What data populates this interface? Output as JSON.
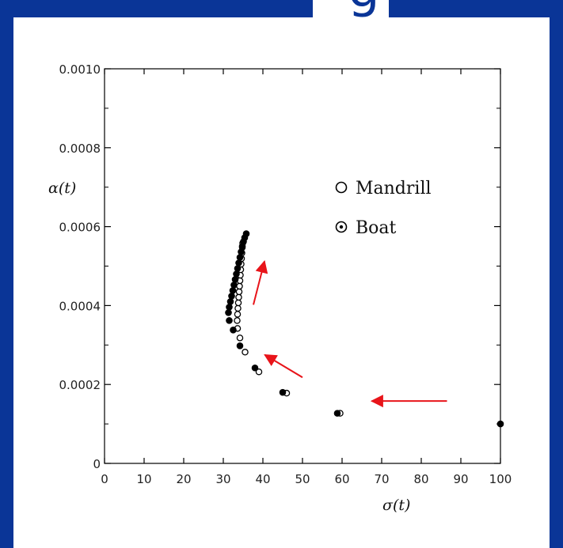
{
  "header": {
    "title_fragment": "g"
  },
  "colors": {
    "background": "#0a3597",
    "panel": "#ffffff",
    "arrow": "#e8141a",
    "marker": "#000000"
  },
  "chart_data": {
    "type": "scatter",
    "xlabel": "σ(t)",
    "ylabel": "α(t)",
    "xlim": [
      0,
      100
    ],
    "ylim": [
      0,
      0.001
    ],
    "x_ticks": [
      0,
      10,
      20,
      30,
      40,
      50,
      60,
      70,
      80,
      90,
      100
    ],
    "x_tick_labels": [
      "0",
      "10",
      "20",
      "30",
      "40",
      "50",
      "60",
      "70",
      "80",
      "90",
      "100"
    ],
    "y_ticks": [
      0,
      0.0002,
      0.0004,
      0.0006,
      0.0008,
      0.001
    ],
    "y_tick_labels": [
      "0",
      "0.0002",
      "0.0004",
      "0.0006",
      "0.0008",
      "0.0010"
    ],
    "legend": {
      "placement": "top-right",
      "entries": [
        {
          "label": "Mandrill",
          "marker": "open-circle"
        },
        {
          "label": "Boat",
          "marker": "dotted-circle"
        }
      ]
    },
    "series": [
      {
        "name": "Mandrill",
        "marker": "open-circle",
        "points": [
          [
            59.5,
            0.000127
          ],
          [
            46.0,
            0.000178
          ],
          [
            39.0,
            0.000232
          ],
          [
            35.5,
            0.000282
          ],
          [
            34.2,
            0.000318
          ],
          [
            33.6,
            0.000342
          ],
          [
            33.5,
            0.000362
          ],
          [
            33.6,
            0.000378
          ],
          [
            33.7,
            0.000393
          ],
          [
            33.8,
            0.000407
          ],
          [
            33.9,
            0.000421
          ],
          [
            34.0,
            0.000435
          ],
          [
            34.1,
            0.000449
          ],
          [
            34.2,
            0.000463
          ],
          [
            34.3,
            0.000477
          ],
          [
            34.4,
            0.000491
          ],
          [
            34.5,
            0.000505
          ],
          [
            34.6,
            0.000519
          ],
          [
            34.7,
            0.000533
          ],
          [
            34.8,
            0.000547
          ],
          [
            34.9,
            0.000558
          ]
        ]
      },
      {
        "name": "Boat",
        "marker": "dotted-circle",
        "points": [
          [
            100.0,
            0.0001
          ],
          [
            58.8,
            0.000127
          ],
          [
            45.0,
            0.00018
          ],
          [
            38.0,
            0.000242
          ],
          [
            34.2,
            0.000298
          ],
          [
            32.5,
            0.000338
          ],
          [
            31.5,
            0.000362
          ],
          [
            31.3,
            0.000382
          ],
          [
            31.5,
            0.000396
          ],
          [
            31.8,
            0.00041
          ],
          [
            32.1,
            0.000424
          ],
          [
            32.4,
            0.000438
          ],
          [
            32.7,
            0.000452
          ],
          [
            33.0,
            0.000466
          ],
          [
            33.3,
            0.00048
          ],
          [
            33.6,
            0.000494
          ],
          [
            33.9,
            0.000508
          ],
          [
            34.2,
            0.000522
          ],
          [
            34.5,
            0.000536
          ],
          [
            34.8,
            0.00055
          ],
          [
            35.1,
            0.000562
          ],
          [
            35.4,
            0.000572
          ],
          [
            35.8,
            0.000582
          ]
        ]
      }
    ],
    "annotations": [
      {
        "type": "arrow",
        "from": [
          86.5,
          0.000158
        ],
        "to": [
          67.5,
          0.000158
        ]
      },
      {
        "type": "arrow",
        "from": [
          50.0,
          0.000218
        ],
        "to": [
          40.5,
          0.000275
        ]
      },
      {
        "type": "arrow",
        "from": [
          37.6,
          0.000402
        ],
        "to": [
          40.4,
          0.000512
        ]
      }
    ]
  }
}
